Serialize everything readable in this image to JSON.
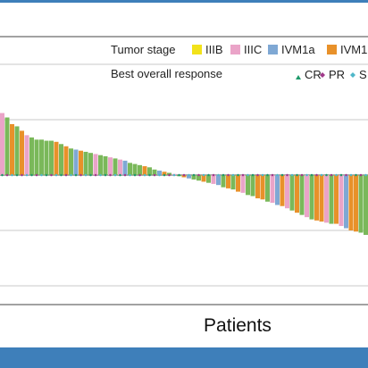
{
  "colors": {
    "band": "#3e7fba",
    "frame": "#444444",
    "grid": "#c8c8c8",
    "baseline": "#555555"
  },
  "legend": {
    "stage_title": "Tumor stage",
    "stages": [
      {
        "label": "IIIB",
        "color": "#f2e21a"
      },
      {
        "label": "IIIC",
        "color": "#eaa4c8"
      },
      {
        "label": "IVM1a",
        "color": "#7fa8d4"
      },
      {
        "label": "IVM1",
        "color": "#e8912a"
      }
    ],
    "response_title": "Best overall response",
    "responses": [
      {
        "label": "CR",
        "color": "#1f9a6b"
      },
      {
        "label": "PR",
        "color": "#a03a8a"
      },
      {
        "label": "S",
        "color": "#4fb7c9"
      }
    ]
  },
  "chart_data": {
    "type": "bar",
    "title": "",
    "xlabel": "Patients",
    "ylabel": "",
    "ylim": [
      -100,
      100
    ],
    "grid": true,
    "legend_position": "top",
    "categories_note": "",
    "series": [
      {
        "values": [
          56,
          52,
          46,
          44,
          40,
          36,
          34,
          32,
          32,
          31,
          31,
          30,
          28,
          26,
          24,
          23,
          22,
          21,
          20,
          19,
          18,
          17,
          16,
          15,
          14,
          13,
          11,
          10,
          9,
          8,
          7,
          5,
          4,
          3,
          2,
          1,
          -1,
          -2,
          -3,
          -4,
          -5,
          -6,
          -7,
          -8,
          -9,
          -11,
          -12,
          -13,
          -15,
          -16,
          -18,
          -19,
          -21,
          -22,
          -24,
          -25,
          -27,
          -28,
          -30,
          -32,
          -34,
          -36,
          -38,
          -40,
          -41,
          -42,
          -43,
          -44,
          -44,
          -46,
          -48,
          -50,
          -51,
          -52,
          -54
        ],
        "colors": [
          "#eaa4c8",
          "#7ab85a",
          "#e8912a",
          "#7ab85a",
          "#e8912a",
          "#eaa4c8",
          "#7ab85a",
          "#7ab85a",
          "#7ab85a",
          "#7ab85a",
          "#7ab85a",
          "#e8912a",
          "#7ab85a",
          "#e8912a",
          "#7ab85a",
          "#7fa8d4",
          "#e8912a",
          "#7ab85a",
          "#7ab85a",
          "#eaa4c8",
          "#7ab85a",
          "#7ab85a",
          "#eaa4c8",
          "#7ab85a",
          "#eaa4c8",
          "#7fa8d4",
          "#7ab85a",
          "#7ab85a",
          "#7ab85a",
          "#e8912a",
          "#7ab85a",
          "#7ab85a",
          "#7fa8d4",
          "#e8912a",
          "#7ab85a",
          "#eaa4c8",
          "#7ab85a",
          "#e8912a",
          "#7fa8d4",
          "#7ab85a",
          "#7ab85a",
          "#e8912a",
          "#7ab85a",
          "#eaa4c8",
          "#7fa8d4",
          "#7ab85a",
          "#e8912a",
          "#7ab85a",
          "#e8912a",
          "#eaa4c8",
          "#7ab85a",
          "#7ab85a",
          "#e8912a",
          "#e8912a",
          "#7ab85a",
          "#eaa4c8",
          "#7fa8d4",
          "#e8912a",
          "#eaa4c8",
          "#7ab85a",
          "#e8912a",
          "#7ab85a",
          "#eaa4c8",
          "#7ab85a",
          "#e8912a",
          "#e8912a",
          "#eaa4c8",
          "#7ab85a",
          "#e8912a",
          "#eaa4c8",
          "#7fa8d4",
          "#e8912a",
          "#e8912a",
          "#7ab85a",
          "#7ab85a"
        ]
      }
    ]
  }
}
